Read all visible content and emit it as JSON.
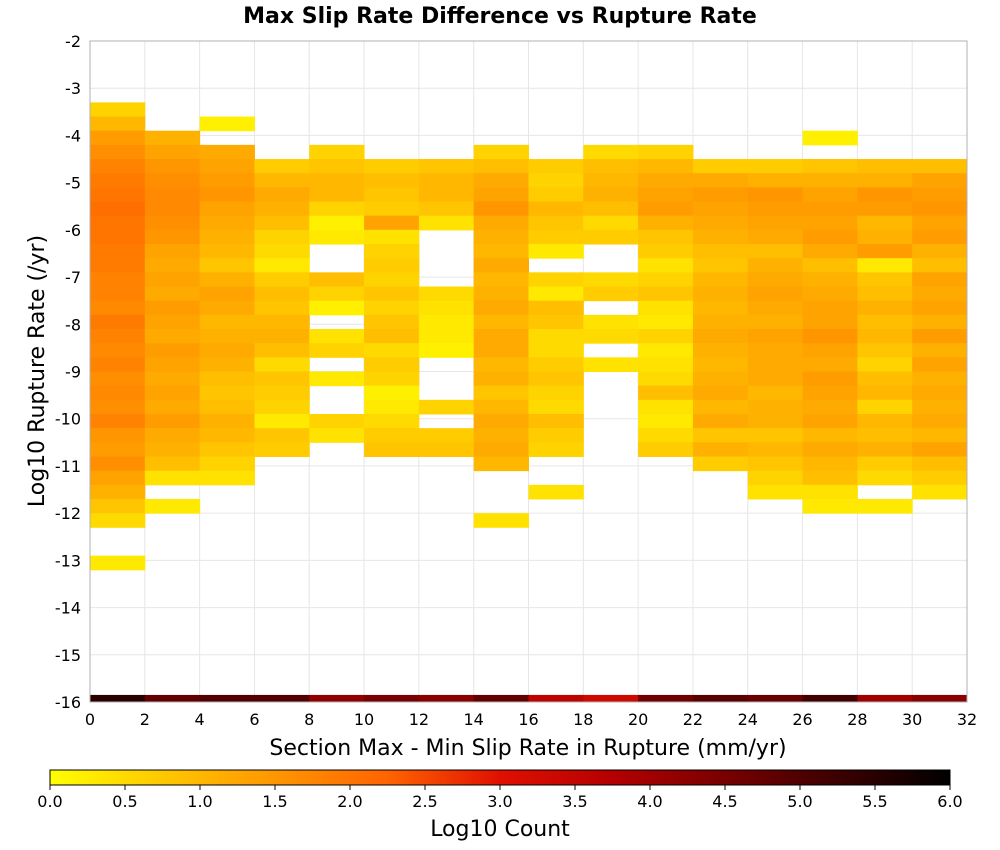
{
  "chart_data": {
    "type": "heatmap",
    "title": "Max Slip Rate Difference vs Rupture Rate",
    "xlabel": "Section Max - Min Slip Rate in Rupture (mm/yr)",
    "ylabel": "Log10 Rupture Rate (/yr)",
    "xlim": [
      0,
      32
    ],
    "ylim": [
      -16,
      -2
    ],
    "x_ticks": [
      "0",
      "2",
      "4",
      "6",
      "8",
      "10",
      "12",
      "14",
      "16",
      "18",
      "20",
      "22",
      "24",
      "26",
      "28",
      "30",
      "32"
    ],
    "y_ticks": [
      "-2",
      "-3",
      "-4",
      "-5",
      "-6",
      "-7",
      "-8",
      "-9",
      "-10",
      "-11",
      "-12",
      "-13",
      "-14",
      "-15",
      "-16"
    ],
    "colorbar": {
      "label": "Log10 Count",
      "range": [
        0,
        6
      ],
      "ticks": [
        "0.0",
        "0.5",
        "1.0",
        "1.5",
        "2.0",
        "2.5",
        "3.0",
        "3.5",
        "4.0",
        "4.5",
        "5.0",
        "5.5",
        "6.0"
      ],
      "colors": [
        "#ffff00",
        "#ffc800",
        "#ff9600",
        "#ff6400",
        "#e01000",
        "#b40000",
        "#780000",
        "#3c0000",
        "#000000"
      ]
    },
    "bin_width_x": 2,
    "bin_height_y": 0.3,
    "x_bin_starts": [
      0,
      2,
      4,
      6,
      8,
      10,
      12,
      14,
      16,
      18,
      20,
      22,
      24,
      26,
      28,
      30
    ],
    "y_bin_bottoms": [
      -3.6,
      -3.9,
      -4.2,
      -4.5,
      -4.8,
      -5.1,
      -5.4,
      -5.7,
      -6.0,
      -6.3,
      -6.6,
      -6.9,
      -7.2,
      -7.5,
      -7.8,
      -8.1,
      -8.4,
      -8.7,
      -9.0,
      -9.3,
      -9.6,
      -9.9,
      -10.2,
      -10.5,
      -10.8,
      -11.1,
      -11.4,
      -11.7,
      -12.0,
      -12.3,
      -12.6,
      -12.9,
      -13.2
    ],
    "values_log10_count": [
      [
        0.6,
        null,
        null,
        null,
        null,
        null,
        null,
        null,
        null,
        null,
        null,
        null,
        null,
        null,
        null,
        null
      ],
      [
        1.0,
        null,
        0.2,
        null,
        null,
        null,
        null,
        null,
        null,
        null,
        null,
        null,
        null,
        null,
        null,
        null
      ],
      [
        1.4,
        1.1,
        null,
        null,
        null,
        null,
        null,
        null,
        null,
        null,
        null,
        null,
        null,
        0.2,
        null,
        null
      ],
      [
        1.6,
        1.3,
        1.2,
        null,
        0.6,
        null,
        null,
        0.6,
        null,
        0.5,
        0.6,
        null,
        null,
        null,
        null,
        null
      ],
      [
        1.8,
        1.5,
        1.3,
        0.7,
        0.8,
        0.7,
        0.8,
        0.9,
        0.7,
        0.9,
        1.0,
        0.7,
        0.7,
        0.8,
        0.9,
        0.9
      ],
      [
        1.9,
        1.6,
        1.4,
        1.0,
        1.0,
        0.9,
        1.0,
        1.2,
        0.6,
        1.0,
        1.2,
        1.2,
        1.1,
        1.1,
        1.1,
        1.3
      ],
      [
        2.0,
        1.7,
        1.5,
        1.2,
        1.0,
        0.8,
        1.0,
        1.3,
        0.7,
        1.1,
        1.3,
        1.4,
        1.5,
        1.3,
        1.5,
        1.4
      ],
      [
        2.1,
        1.7,
        1.3,
        1.1,
        0.6,
        0.7,
        0.8,
        1.5,
        1.0,
        0.9,
        1.4,
        1.3,
        1.4,
        1.4,
        1.4,
        1.5
      ],
      [
        2.0,
        1.6,
        1.2,
        0.9,
        0.2,
        1.3,
        0.4,
        1.2,
        0.8,
        0.5,
        1.1,
        1.2,
        1.3,
        1.3,
        1.0,
        1.3
      ],
      [
        2.0,
        1.5,
        1.1,
        0.6,
        0.3,
        0.4,
        null,
        1.1,
        0.7,
        0.7,
        0.8,
        1.1,
        1.2,
        1.4,
        1.1,
        1.4
      ],
      [
        1.9,
        1.3,
        1.0,
        0.5,
        null,
        0.6,
        null,
        1.0,
        0.3,
        null,
        0.7,
        0.9,
        0.9,
        1.2,
        1.4,
        1.1
      ],
      [
        1.9,
        1.2,
        0.8,
        0.3,
        null,
        0.7,
        null,
        1.2,
        null,
        null,
        0.4,
        0.8,
        1.1,
        0.9,
        0.3,
        0.9
      ],
      [
        1.8,
        1.3,
        1.1,
        0.7,
        0.9,
        0.6,
        null,
        1.0,
        0.6,
        0.5,
        0.6,
        1.0,
        1.2,
        1.1,
        0.8,
        1.3
      ],
      [
        1.8,
        1.2,
        1.3,
        0.9,
        0.6,
        0.8,
        0.5,
        1.1,
        0.3,
        0.7,
        0.8,
        1.1,
        1.3,
        1.2,
        0.9,
        1.2
      ],
      [
        1.7,
        1.4,
        1.2,
        0.8,
        0.2,
        0.6,
        0.4,
        1.2,
        0.9,
        null,
        0.4,
        1.0,
        1.2,
        1.3,
        1.1,
        1.3
      ],
      [
        1.9,
        1.3,
        1.0,
        1.0,
        null,
        0.8,
        0.3,
        1.0,
        0.8,
        0.4,
        0.3,
        1.1,
        1.1,
        1.3,
        0.9,
        1.1
      ],
      [
        1.8,
        1.2,
        1.1,
        1.1,
        0.4,
        0.9,
        0.3,
        1.2,
        0.5,
        0.5,
        0.6,
        1.2,
        1.3,
        1.5,
        1.0,
        1.4
      ],
      [
        1.7,
        1.4,
        1.2,
        0.9,
        0.6,
        0.5,
        0.2,
        1.2,
        0.5,
        null,
        0.3,
        1.1,
        1.2,
        1.3,
        0.8,
        1.1
      ],
      [
        1.8,
        1.3,
        1.1,
        0.5,
        null,
        0.7,
        null,
        1.0,
        0.7,
        0.4,
        0.4,
        1.0,
        1.2,
        1.2,
        0.6,
        1.3
      ],
      [
        1.6,
        1.2,
        0.9,
        0.8,
        0.3,
        0.6,
        null,
        1.1,
        0.8,
        null,
        0.5,
        1.1,
        1.2,
        1.4,
        0.9,
        1.1
      ],
      [
        1.7,
        1.3,
        0.8,
        0.7,
        null,
        0.2,
        null,
        0.8,
        0.6,
        null,
        0.9,
        1.2,
        1.0,
        1.3,
        1.0,
        1.2
      ],
      [
        1.6,
        1.2,
        0.9,
        0.6,
        null,
        0.3,
        0.6,
        1.0,
        0.5,
        null,
        0.4,
        1.0,
        1.1,
        1.2,
        0.6,
        1.1
      ],
      [
        1.8,
        1.4,
        1.1,
        0.3,
        0.6,
        0.5,
        null,
        1.2,
        0.9,
        null,
        0.3,
        1.2,
        1.1,
        1.3,
        1.0,
        1.2
      ],
      [
        1.5,
        1.2,
        1.0,
        0.8,
        0.4,
        0.7,
        0.7,
        1.1,
        0.7,
        null,
        0.5,
        0.8,
        0.8,
        1.0,
        0.9,
        1.0
      ],
      [
        1.4,
        1.1,
        0.8,
        0.7,
        null,
        0.8,
        0.8,
        1.2,
        0.6,
        null,
        0.7,
        1.1,
        1.0,
        1.2,
        1.1,
        1.3
      ],
      [
        1.6,
        0.9,
        0.6,
        null,
        null,
        null,
        null,
        1.0,
        null,
        null,
        null,
        0.7,
        0.8,
        1.0,
        0.7,
        0.9
      ],
      [
        1.3,
        0.4,
        0.4,
        null,
        null,
        null,
        null,
        null,
        null,
        null,
        null,
        null,
        0.6,
        0.9,
        0.5,
        0.7
      ],
      [
        1.1,
        null,
        null,
        null,
        null,
        null,
        null,
        null,
        0.4,
        null,
        null,
        null,
        0.4,
        0.4,
        null,
        0.4
      ],
      [
        0.8,
        0.3,
        null,
        null,
        null,
        null,
        null,
        null,
        null,
        null,
        null,
        null,
        null,
        0.3,
        0.3,
        null
      ],
      [
        0.5,
        null,
        null,
        null,
        null,
        null,
        null,
        0.4,
        null,
        null,
        null,
        null,
        null,
        null,
        null,
        null
      ],
      [
        null,
        null,
        null,
        null,
        null,
        null,
        null,
        null,
        null,
        null,
        null,
        null,
        null,
        null,
        null,
        null
      ],
      [
        null,
        null,
        null,
        null,
        null,
        null,
        null,
        null,
        null,
        null,
        null,
        null,
        null,
        null,
        null,
        null
      ],
      [
        0.3,
        null,
        null,
        null,
        null,
        null,
        null,
        null,
        null,
        null,
        null,
        null,
        null,
        null,
        null,
        null
      ]
    ],
    "bottom_row": {
      "y_bottom": -16,
      "height": 0.15,
      "values_log10_count": [
        5.5,
        4.8,
        5.0,
        5.0,
        4.2,
        4.5,
        4.3,
        4.8,
        3.6,
        3.3,
        4.6,
        4.9,
        4.7,
        5.2,
        4.0,
        4.3
      ]
    },
    "grid": true,
    "legend": "colorbar-bottom"
  }
}
